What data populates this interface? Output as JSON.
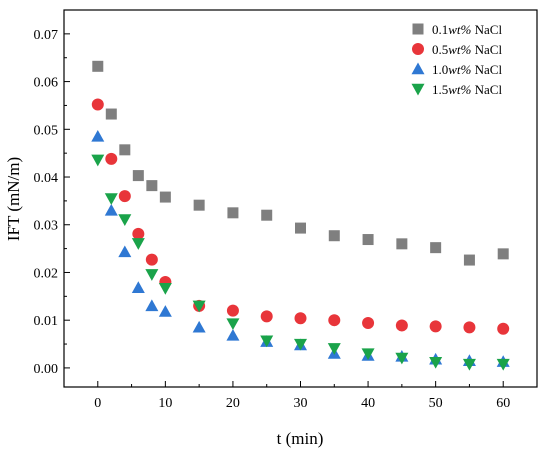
{
  "chart_data": {
    "type": "scatter",
    "xlabel": "t (min)",
    "ylabel": "IFT (mN/m)",
    "xlim": [
      -5,
      65
    ],
    "ylim": [
      -0.004,
      0.075
    ],
    "x_ticks": [
      0,
      10,
      20,
      30,
      40,
      50,
      60
    ],
    "y_ticks": [
      0.0,
      0.01,
      0.02,
      0.03,
      0.04,
      0.05,
      0.06,
      0.07
    ],
    "x_tick_labels": [
      "0",
      "10",
      "20",
      "30",
      "40",
      "50",
      "60"
    ],
    "y_tick_labels": [
      "0.00",
      "0.01",
      "0.02",
      "0.03",
      "0.04",
      "0.05",
      "0.06",
      "0.07"
    ],
    "grid": false,
    "legend_position": "top-right",
    "series": [
      {
        "name": "0.1wt% NaCl",
        "legend_prefix": "0.1",
        "legend_italic": "wt%",
        "legend_suffix": " NaCl",
        "marker": "square",
        "color": "#7f7f7f",
        "x": [
          0,
          2,
          4,
          6,
          8,
          10,
          15,
          20,
          25,
          30,
          35,
          40,
          45,
          50,
          55,
          60
        ],
        "y": [
          0.0632,
          0.0532,
          0.0457,
          0.0403,
          0.0382,
          0.0358,
          0.0341,
          0.0325,
          0.032,
          0.0293,
          0.0277,
          0.0269,
          0.026,
          0.0252,
          0.0226,
          0.0239
        ]
      },
      {
        "name": "0.5wt% NaCl",
        "legend_prefix": "0.5",
        "legend_italic": "wt%",
        "legend_suffix": " NaCl",
        "marker": "circle",
        "color": "#e8353a",
        "x": [
          0,
          2,
          4,
          6,
          8,
          10,
          15,
          20,
          25,
          30,
          35,
          40,
          45,
          50,
          55,
          60
        ],
        "y": [
          0.0552,
          0.0438,
          0.036,
          0.0281,
          0.0227,
          0.018,
          0.013,
          0.012,
          0.0108,
          0.0104,
          0.01,
          0.0094,
          0.0089,
          0.0087,
          0.0085,
          0.0082
        ]
      },
      {
        "name": "1.0wt% NaCl",
        "legend_prefix": "1.0",
        "legend_italic": "wt%",
        "legend_suffix": " NaCl",
        "marker": "triangle-up",
        "color": "#2f78d3",
        "x": [
          0,
          2,
          4,
          6,
          8,
          10,
          15,
          20,
          25,
          30,
          35,
          40,
          45,
          50,
          55,
          60
        ],
        "y": [
          0.0485,
          0.033,
          0.0243,
          0.0168,
          0.013,
          0.0118,
          0.0085,
          0.0068,
          0.0055,
          0.0048,
          0.003,
          0.0026,
          0.0024,
          0.0018,
          0.0015,
          0.0013
        ]
      },
      {
        "name": "1.5wt% NaCl",
        "legend_prefix": "1.5",
        "legend_italic": "wt%",
        "legend_suffix": " NaCl",
        "marker": "triangle-down",
        "color": "#1aa34a",
        "x": [
          0,
          2,
          4,
          6,
          8,
          10,
          15,
          20,
          25,
          30,
          35,
          40,
          45,
          50,
          55,
          60
        ],
        "y": [
          0.0436,
          0.0355,
          0.0311,
          0.0261,
          0.0196,
          0.0167,
          0.013,
          0.0093,
          0.0057,
          0.005,
          0.0041,
          0.003,
          0.0021,
          0.0012,
          0.0008,
          0.0008
        ]
      }
    ]
  }
}
